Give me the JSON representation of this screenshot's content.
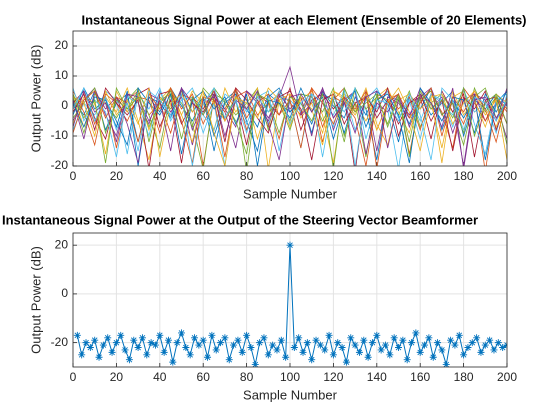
{
  "chart_data": [
    {
      "type": "line",
      "title": "Instantaneous Signal Power at each Element (Ensemble of 20 Elements)",
      "xlabel": "Sample Number",
      "ylabel": "Output Power (dB)",
      "grid": true,
      "xlim": [
        0,
        200
      ],
      "xticks": [
        0,
        20,
        40,
        60,
        80,
        100,
        120,
        140,
        160,
        180,
        200
      ],
      "ylim": [
        -20,
        25
      ],
      "yticks": [
        -20,
        -10,
        0,
        10,
        20
      ],
      "x": [
        0,
        5,
        10,
        15,
        20,
        25,
        30,
        35,
        40,
        45,
        50,
        55,
        60,
        65,
        70,
        75,
        80,
        85,
        90,
        95,
        100,
        105,
        110,
        115,
        120,
        125,
        130,
        135,
        140,
        145,
        150,
        155,
        160,
        165,
        170,
        175,
        180,
        185,
        190,
        195,
        200
      ],
      "series": [
        {
          "color": "#0072BD",
          "values": [
            2,
            -3,
            5,
            -8,
            1,
            4,
            -12,
            3,
            -2,
            6,
            0,
            -5,
            3,
            -15,
            2,
            5,
            -1,
            -7,
            4,
            1,
            -2,
            3,
            -9,
            5,
            0,
            -4,
            6,
            -1,
            -18,
            3,
            2,
            -6,
            4,
            -3,
            1,
            5,
            -10,
            2,
            -1,
            4,
            0
          ]
        },
        {
          "color": "#D95319",
          "values": [
            -1,
            4,
            -6,
            3,
            -14,
            2,
            5,
            -3,
            1,
            -9,
            4,
            2,
            -20,
            3,
            -1,
            6,
            -4,
            2,
            -7,
            5,
            1,
            -3,
            4,
            -12,
            2,
            6,
            -2,
            3,
            -8,
            1,
            4,
            -16,
            2,
            5,
            -3,
            1,
            -6,
            4,
            -22,
            3,
            -2
          ]
        },
        {
          "color": "#EDB120",
          "values": [
            4,
            -7,
            1,
            3,
            -2,
            6,
            -5,
            -18,
            2,
            4,
            -3,
            5,
            1,
            -8,
            6,
            -2,
            3,
            -11,
            1,
            4,
            -6,
            2,
            5,
            -3,
            -19,
            4,
            1,
            -5,
            3,
            6,
            -2,
            -9,
            4,
            1,
            -14,
            3,
            5,
            -2,
            1,
            -7,
            3
          ]
        },
        {
          "color": "#7E2F8E",
          "values": [
            -5,
            2,
            6,
            -3,
            -10,
            4,
            1,
            -6,
            5,
            -2,
            3,
            -13,
            2,
            4,
            -1,
            -7,
            5,
            2,
            -4,
            3,
            13,
            -3,
            1,
            5,
            -8,
            2,
            -2,
            4,
            -15,
            3,
            1,
            -4,
            6,
            -1,
            3,
            -9,
            2,
            4,
            -5,
            1,
            -11
          ]
        },
        {
          "color": "#77AC30",
          "values": [
            3,
            -9,
            4,
            1,
            -4,
            2,
            6,
            -12,
            3,
            -1,
            5,
            -6,
            -21,
            4,
            2,
            -3,
            1,
            6,
            -8,
            2,
            -5,
            4,
            3,
            -2,
            6,
            -10,
            1,
            -17,
            4,
            2,
            -3,
            5,
            -7,
            1,
            4,
            -2,
            -13,
            3,
            6,
            -4,
            2
          ]
        },
        {
          "color": "#4DBEEE",
          "values": [
            -8,
            1,
            -3,
            5,
            2,
            -16,
            4,
            -1,
            6,
            -5,
            2,
            3,
            -9,
            1,
            -20,
            4,
            -2,
            5,
            -6,
            3,
            2,
            -14,
            4,
            1,
            -3,
            5,
            -8,
            2,
            6,
            -1,
            -21,
            3,
            -5,
            4,
            2,
            -7,
            5,
            -2,
            1,
            -9,
            4
          ]
        },
        {
          "color": "#A2142F",
          "values": [
            1,
            5,
            -4,
            -11,
            3,
            -2,
            4,
            6,
            -7,
            2,
            -19,
            3,
            -1,
            5,
            -5,
            2,
            -13,
            4,
            1,
            -3,
            6,
            -8,
            2,
            4,
            -1,
            3,
            -22,
            5,
            -4,
            2,
            -6,
            1,
            3,
            -11,
            5,
            -2,
            4,
            -17,
            2,
            3,
            -6
          ]
        },
        {
          "color": "#0072BD",
          "values": [
            -3,
            6,
            -1,
            2,
            -7,
            5,
            -20,
            3,
            1,
            -4,
            6,
            -2,
            3,
            -10,
            1,
            4,
            -5,
            -15,
            3,
            6,
            -2,
            1,
            -6,
            4,
            2,
            -9,
            3,
            -3,
            5,
            1,
            -12,
            4,
            -1,
            6,
            -8,
            2,
            -4,
            3,
            -18,
            1,
            5
          ]
        },
        {
          "color": "#D95319",
          "values": [
            5,
            -2,
            -13,
            4,
            1,
            -5,
            3,
            2,
            -9,
            6,
            -1,
            4,
            -6,
            2,
            -17,
            3,
            5,
            -3,
            1,
            -11,
            4,
            -2,
            6,
            -7,
            3,
            1,
            -4,
            -20,
            2,
            5,
            -1,
            3,
            -8,
            4,
            -2,
            -14,
            6,
            1,
            -5,
            3,
            -1
          ]
        },
        {
          "color": "#EDB120",
          "values": [
            -6,
            3,
            1,
            -16,
            5,
            -2,
            4,
            -8,
            2,
            6,
            -3,
            -12,
            4,
            1,
            -5,
            3,
            -1,
            6,
            -21,
            2,
            4,
            -4,
            1,
            -9,
            5,
            3,
            -2,
            6,
            -6,
            -13,
            2,
            4,
            -1,
            3,
            -19,
            5,
            -3,
            2,
            -7,
            4,
            1
          ]
        },
        {
          "color": "#7E2F8E",
          "values": [
            2,
            -11,
            5,
            -1,
            3,
            -6,
            -19,
            4,
            2,
            -3,
            6,
            -8,
            1,
            3,
            -2,
            -14,
            5,
            1,
            -5,
            4,
            -1,
            3,
            -10,
            6,
            -4,
            2,
            5,
            -16,
            1,
            -2,
            4,
            -7,
            3,
            6,
            -3,
            1,
            -20,
            4,
            2,
            -5,
            6
          ]
        },
        {
          "color": "#77AC30",
          "values": [
            -4,
            1,
            6,
            -9,
            2,
            -1,
            5,
            -3,
            -14,
            4,
            1,
            -7,
            6,
            2,
            -4,
            3,
            -22,
            5,
            -2,
            1,
            -8,
            4,
            3,
            -5,
            2,
            -12,
            6,
            -1,
            3,
            -6,
            4,
            -17,
            2,
            5,
            -3,
            1,
            -9,
            6,
            -2,
            3,
            -13
          ]
        },
        {
          "color": "#4DBEEE",
          "values": [
            6,
            -5,
            2,
            -2,
            -17,
            3,
            1,
            -10,
            5,
            -4,
            2,
            6,
            -3,
            -8,
            4,
            1,
            -6,
            3,
            5,
            -15,
            2,
            -2,
            4,
            1,
            -7,
            6,
            -20,
            3,
            -1,
            5,
            -4,
            2,
            -11,
            4,
            1,
            -3,
            6,
            -6,
            -16,
            2,
            4
          ]
        },
        {
          "color": "#A2142F",
          "values": [
            -2,
            4,
            -8,
            6,
            1,
            -3,
            2,
            -21,
            4,
            5,
            -6,
            1,
            -2,
            4,
            -12,
            6,
            2,
            -4,
            -9,
            3,
            5,
            -1,
            -18,
            2,
            4,
            -6,
            1,
            3,
            -2,
            6,
            -10,
            1,
            4,
            -5,
            2,
            -15,
            3,
            -1,
            5,
            -8,
            2
          ]
        },
        {
          "color": "#0072BD",
          "values": [
            1,
            -7,
            3,
            2,
            -5,
            -13,
            6,
            1,
            -3,
            4,
            -16,
            2,
            5,
            -1,
            3,
            -6,
            4,
            -20,
            2,
            1,
            -4,
            6,
            -2,
            3,
            -11,
            1,
            5,
            -7,
            2,
            4,
            -3,
            -19,
            6,
            1,
            -5,
            3,
            2,
            -9,
            4,
            -2,
            5
          ]
        },
        {
          "color": "#D95319",
          "values": [
            -9,
            2,
            5,
            -4,
            3,
            1,
            -12,
            4,
            -1,
            6,
            -5,
            -19,
            3,
            2,
            -2,
            5,
            -8,
            1,
            4,
            -3,
            2,
            -14,
            6,
            1,
            -6,
            3,
            -1,
            5,
            -21,
            2,
            4,
            -4,
            1,
            6,
            -10,
            3,
            -2,
            5,
            -1,
            -12,
            3
          ]
        },
        {
          "color": "#EDB120",
          "values": [
            3,
            1,
            -10,
            5,
            -3,
            2,
            -6,
            6,
            -17,
            1,
            4,
            -2,
            5,
            -9,
            -20,
            3,
            1,
            -4,
            6,
            2,
            -7,
            3,
            -1,
            -13,
            5,
            2,
            -3,
            4,
            -8,
            1,
            6,
            -2,
            -15,
            3,
            4,
            -6,
            1,
            5,
            -3,
            2,
            -18
          ]
        },
        {
          "color": "#7E2F8E",
          "values": [
            -7,
            5,
            -2,
            1,
            -12,
            4,
            3,
            -5,
            2,
            -15,
            6,
            1,
            -3,
            4,
            -10,
            2,
            -1,
            5,
            -6,
            -18,
            3,
            4,
            -2,
            6,
            -4,
            1,
            -9,
            3,
            5,
            -14,
            2,
            -3,
            4,
            1,
            -7,
            6,
            -21,
            2,
            3,
            -4,
            1
          ]
        },
        {
          "color": "#77AC30",
          "values": [
            4,
            -4,
            2,
            -19,
            6,
            -1,
            3,
            -7,
            1,
            5,
            -11,
            3,
            -3,
            6,
            1,
            -5,
            -16,
            4,
            2,
            -9,
            3,
            1,
            -5,
            4,
            -21,
            6,
            -2,
            1,
            4,
            -7,
            3,
            -12,
            5,
            -1,
            2,
            -4,
            6,
            -10,
            1,
            4,
            -6
          ]
        },
        {
          "color": "#4DBEEE",
          "values": [
            -1,
            6,
            -5,
            3,
            -8,
            1,
            -15,
            5,
            2,
            -3,
            4,
            -20,
            1,
            6,
            -4,
            2,
            -9,
            3,
            -2,
            5,
            -6,
            1,
            4,
            -17,
            3,
            -2,
            6,
            -11,
            2,
            1,
            -5,
            4,
            -3,
            -18,
            6,
            2,
            -8,
            3,
            1,
            -5,
            2
          ]
        }
      ]
    },
    {
      "type": "line",
      "title": "Instantaneous Signal Power at the Output of the Steering Vector Beamformer",
      "xlabel": "Sample Number",
      "ylabel": "Output Power (dB)",
      "grid": true,
      "marker": "asterisk",
      "xlim": [
        0,
        200
      ],
      "xticks": [
        0,
        20,
        40,
        60,
        80,
        100,
        120,
        140,
        160,
        180,
        200
      ],
      "ylim": [
        -30,
        25
      ],
      "yticks": [
        -20,
        0,
        20
      ],
      "x": [
        2,
        4,
        6,
        8,
        10,
        12,
        14,
        16,
        18,
        20,
        22,
        24,
        26,
        28,
        30,
        32,
        34,
        36,
        38,
        40,
        42,
        44,
        46,
        48,
        50,
        52,
        54,
        56,
        58,
        60,
        62,
        64,
        66,
        68,
        70,
        72,
        74,
        76,
        78,
        80,
        82,
        84,
        86,
        88,
        90,
        92,
        94,
        96,
        98,
        100,
        102,
        104,
        106,
        108,
        110,
        112,
        114,
        116,
        118,
        120,
        122,
        124,
        126,
        128,
        130,
        132,
        134,
        136,
        138,
        140,
        142,
        144,
        146,
        148,
        150,
        152,
        154,
        156,
        158,
        160,
        162,
        164,
        166,
        168,
        170,
        172,
        174,
        176,
        178,
        180,
        182,
        184,
        186,
        188,
        190,
        192,
        194,
        196,
        198,
        200
      ],
      "series": [
        {
          "color": "#0072BD",
          "values": [
            -17,
            -25,
            -20,
            -22,
            -19,
            -26,
            -21,
            -18,
            -24,
            -20,
            -17,
            -23,
            -27,
            -19,
            -22,
            -18,
            -25,
            -20,
            -21,
            -17,
            -24,
            -19,
            -28,
            -20,
            -16,
            -22,
            -25,
            -18,
            -21,
            -19,
            -26,
            -17,
            -23,
            -20,
            -18,
            -27,
            -21,
            -19,
            -24,
            -17,
            -22,
            -29,
            -20,
            -18,
            -25,
            -21,
            -23,
            -19,
            -26,
            20,
            -22,
            -18,
            -24,
            -20,
            -27,
            -19,
            -21,
            -23,
            -17,
            -25,
            -20,
            -22,
            -28,
            -18,
            -21,
            -24,
            -19,
            -26,
            -20,
            -17,
            -23,
            -21,
            -25,
            -18,
            -22,
            -19,
            -27,
            -20,
            -16,
            -24,
            -21,
            -18,
            -26,
            -20,
            -23,
            -29,
            -19,
            -21,
            -17,
            -25,
            -22,
            -20,
            -18,
            -24,
            -21,
            -19,
            -23,
            -20,
            -22,
            -21
          ]
        }
      ]
    }
  ]
}
